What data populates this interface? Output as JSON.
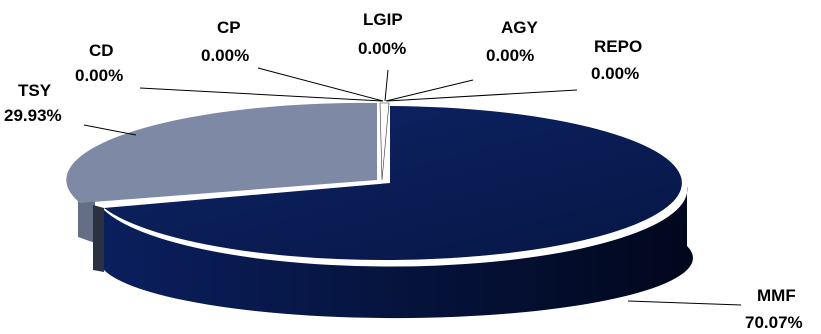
{
  "chart_data": {
    "type": "pie",
    "three_d": true,
    "legend": "none",
    "slices": [
      {
        "label": "MMF",
        "value": 70.07,
        "display": "70.07%",
        "color": "#0a1f5e"
      },
      {
        "label": "TSY",
        "value": 29.93,
        "display": "29.93%",
        "color": "#7e8aa5"
      },
      {
        "label": "CD",
        "value": 0.0,
        "display": "0.00%",
        "color": "#ffffff"
      },
      {
        "label": "CP",
        "value": 0.0,
        "display": "0.00%",
        "color": "#ffffff"
      },
      {
        "label": "LGIP",
        "value": 0.0,
        "display": "0.00%",
        "color": "#ffffff"
      },
      {
        "label": "AGY",
        "value": 0.0,
        "display": "0.00%",
        "color": "#ffffff"
      },
      {
        "label": "REPO",
        "value": 0.0,
        "display": "0.00%",
        "color": "#ffffff"
      }
    ]
  }
}
